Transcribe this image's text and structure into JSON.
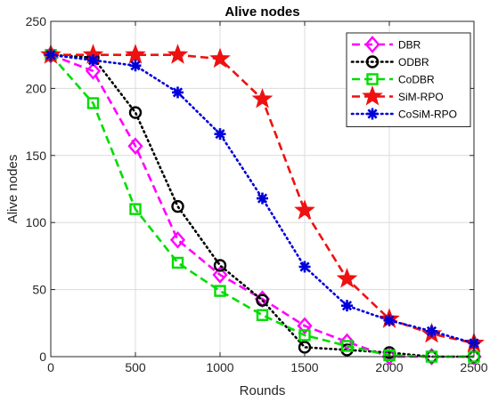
{
  "chart_data": {
    "type": "line",
    "title": "Alive nodes",
    "xlabel": "Rounds",
    "ylabel": "Alive nodes",
    "xlim": [
      0,
      2500
    ],
    "ylim": [
      0,
      250
    ],
    "xticks": [
      0,
      500,
      1000,
      1500,
      2000,
      2500
    ],
    "yticks": [
      0,
      50,
      100,
      150,
      200,
      250
    ],
    "grid": true,
    "legend_position": "top-right",
    "x": [
      0,
      250,
      500,
      750,
      1000,
      1250,
      1500,
      1750,
      2000,
      2250,
      2500
    ],
    "series": [
      {
        "name": "DBR",
        "color": "#ff00ff",
        "dash": "dashed",
        "marker": "diamond",
        "values": [
          225,
          213,
          157,
          87,
          61,
          43,
          23,
          11,
          0,
          0,
          0
        ]
      },
      {
        "name": "ODBR",
        "color": "#000000",
        "dash": "dotted",
        "marker": "circle",
        "values": [
          225,
          223,
          182,
          112,
          68,
          42,
          7,
          5,
          3,
          0,
          0
        ]
      },
      {
        "name": "CoDBR",
        "color": "#00dd00",
        "dash": "dashed",
        "marker": "square",
        "values": [
          225,
          189,
          110,
          70,
          49,
          31,
          16,
          8,
          1,
          0,
          0
        ]
      },
      {
        "name": "SiM-RPO",
        "color": "#ee1111",
        "dash": "dashed",
        "marker": "star",
        "values": [
          225,
          225,
          225,
          225,
          222,
          192,
          109,
          58,
          28,
          17,
          10
        ]
      },
      {
        "name": "CoSiM-RPO",
        "color": "#0000dd",
        "dash": "dotted",
        "marker": "asterisk",
        "values": [
          225,
          221,
          217,
          197,
          166,
          118,
          67,
          38,
          27,
          19,
          10
        ]
      }
    ]
  }
}
